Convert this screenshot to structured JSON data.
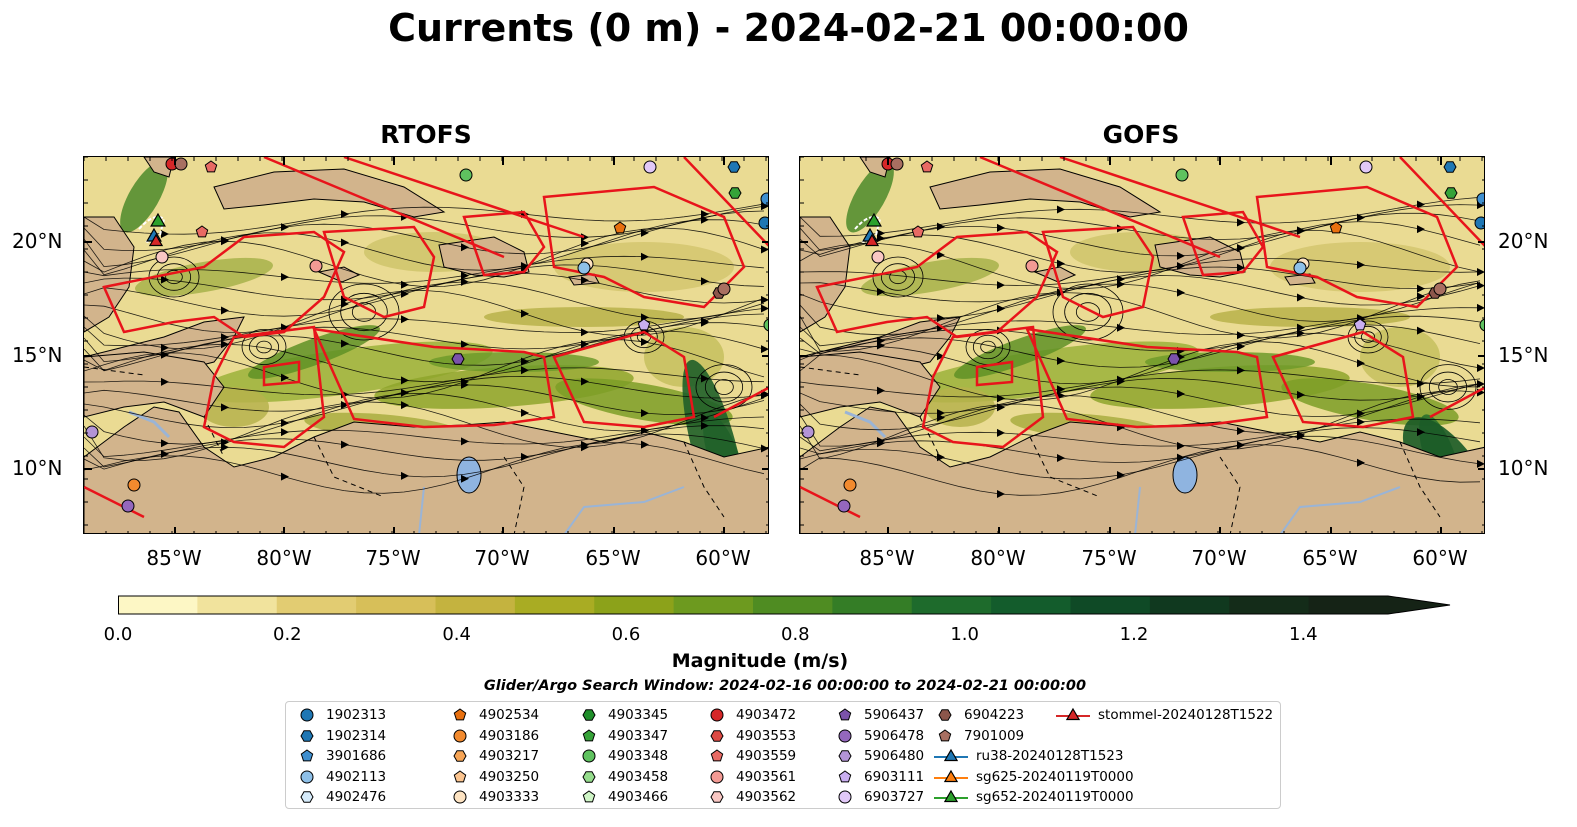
{
  "title": "Currents (0 m) - 2024-02-21 00:00:00",
  "panels": {
    "left": {
      "title": "RTOFS"
    },
    "right": {
      "title": "GOFS"
    }
  },
  "lat_labels": [
    "20°N",
    "15°N",
    "10°N"
  ],
  "lon_labels": [
    "85°W",
    "80°W",
    "75°W",
    "70°W",
    "65°W",
    "60°W"
  ],
  "colorbar": {
    "label": "Magnitude (m/s)",
    "ticks": [
      "0.0",
      "0.2",
      "0.4",
      "0.6",
      "0.8",
      "1.0",
      "1.2",
      "1.4"
    ],
    "range": [
      0,
      1.5
    ],
    "colors": [
      "#fdf7c5",
      "#f1e39d",
      "#e2cc72",
      "#d7bf59",
      "#c4b33f",
      "#a9ac23",
      "#8ca21a",
      "#6d9a1f",
      "#4f8c22",
      "#347d26",
      "#1e6b2c",
      "#135c2c",
      "#0f4a26",
      "#10391f",
      "#142c19",
      "#152316"
    ]
  },
  "search_window": "Glider/Argo Search Window: 2024-02-16 00:00:00 to 2024-02-21 00:00:00",
  "legend": [
    {
      "label": "1902313",
      "marker": "circle",
      "color": "#1f77b4"
    },
    {
      "label": "1902314",
      "marker": "hexagon",
      "color": "#1f77b4"
    },
    {
      "label": "3901686",
      "marker": "pentagon",
      "color": "#3f8fcf"
    },
    {
      "label": "4902113",
      "marker": "circle",
      "color": "#8ec0e8"
    },
    {
      "label": "4902476",
      "marker": "hexagon",
      "color": "#d6ebfa"
    },
    {
      "label": "4902534",
      "marker": "pentagon",
      "color": "#e8700f"
    },
    {
      "label": "4903186",
      "marker": "circle",
      "color": "#f28a2e"
    },
    {
      "label": "4903217",
      "marker": "hexagon",
      "color": "#f7a556"
    },
    {
      "label": "4903250",
      "marker": "pentagon",
      "color": "#fbc48f"
    },
    {
      "label": "4903333",
      "marker": "circle",
      "color": "#fde3c2"
    },
    {
      "label": "4903345",
      "marker": "hexagon",
      "color": "#1f8f2a"
    },
    {
      "label": "4903347",
      "marker": "pentagon",
      "color": "#36a339"
    },
    {
      "label": "4903348",
      "marker": "circle",
      "color": "#5fc25f"
    },
    {
      "label": "4903458",
      "marker": "hexagon",
      "color": "#95dc8c"
    },
    {
      "label": "4903466",
      "marker": "pentagon",
      "color": "#cff5c6"
    },
    {
      "label": "4903472",
      "marker": "circle",
      "color": "#d62728"
    },
    {
      "label": "4903553",
      "marker": "hexagon",
      "color": "#dc4a44"
    },
    {
      "label": "4903559",
      "marker": "pentagon",
      "color": "#e86a64"
    },
    {
      "label": "4903561",
      "marker": "circle",
      "color": "#f39a94"
    },
    {
      "label": "4903562",
      "marker": "hexagon",
      "color": "#f9c7c3"
    },
    {
      "label": "5906437",
      "marker": "pentagon",
      "color": "#7b52ab"
    },
    {
      "label": "5906478",
      "marker": "circle",
      "color": "#9467bd"
    },
    {
      "label": "5906480",
      "marker": "hexagon",
      "color": "#b394d6"
    },
    {
      "label": "6903111",
      "marker": "pentagon",
      "color": "#c9aef0"
    },
    {
      "label": "6903727",
      "marker": "circle",
      "color": "#e1c8f7"
    },
    {
      "label": "6904223",
      "marker": "hexagon",
      "color": "#8c564b"
    },
    {
      "label": "7901009",
      "marker": "pentagon",
      "color": "#a86f61"
    },
    {
      "label": "ru38-20240128T1523",
      "marker": "triangle-line",
      "color": "#1f77b4"
    },
    {
      "label": "sg625-20240119T0000",
      "marker": "triangle-line",
      "color": "#ff7f0e"
    },
    {
      "label": "sg652-20240119T0000",
      "marker": "triangle-line",
      "color": "#2ca02c"
    },
    {
      "label": "stommel-20240128T1522",
      "marker": "triangle-line",
      "color": "#d62728"
    }
  ]
}
